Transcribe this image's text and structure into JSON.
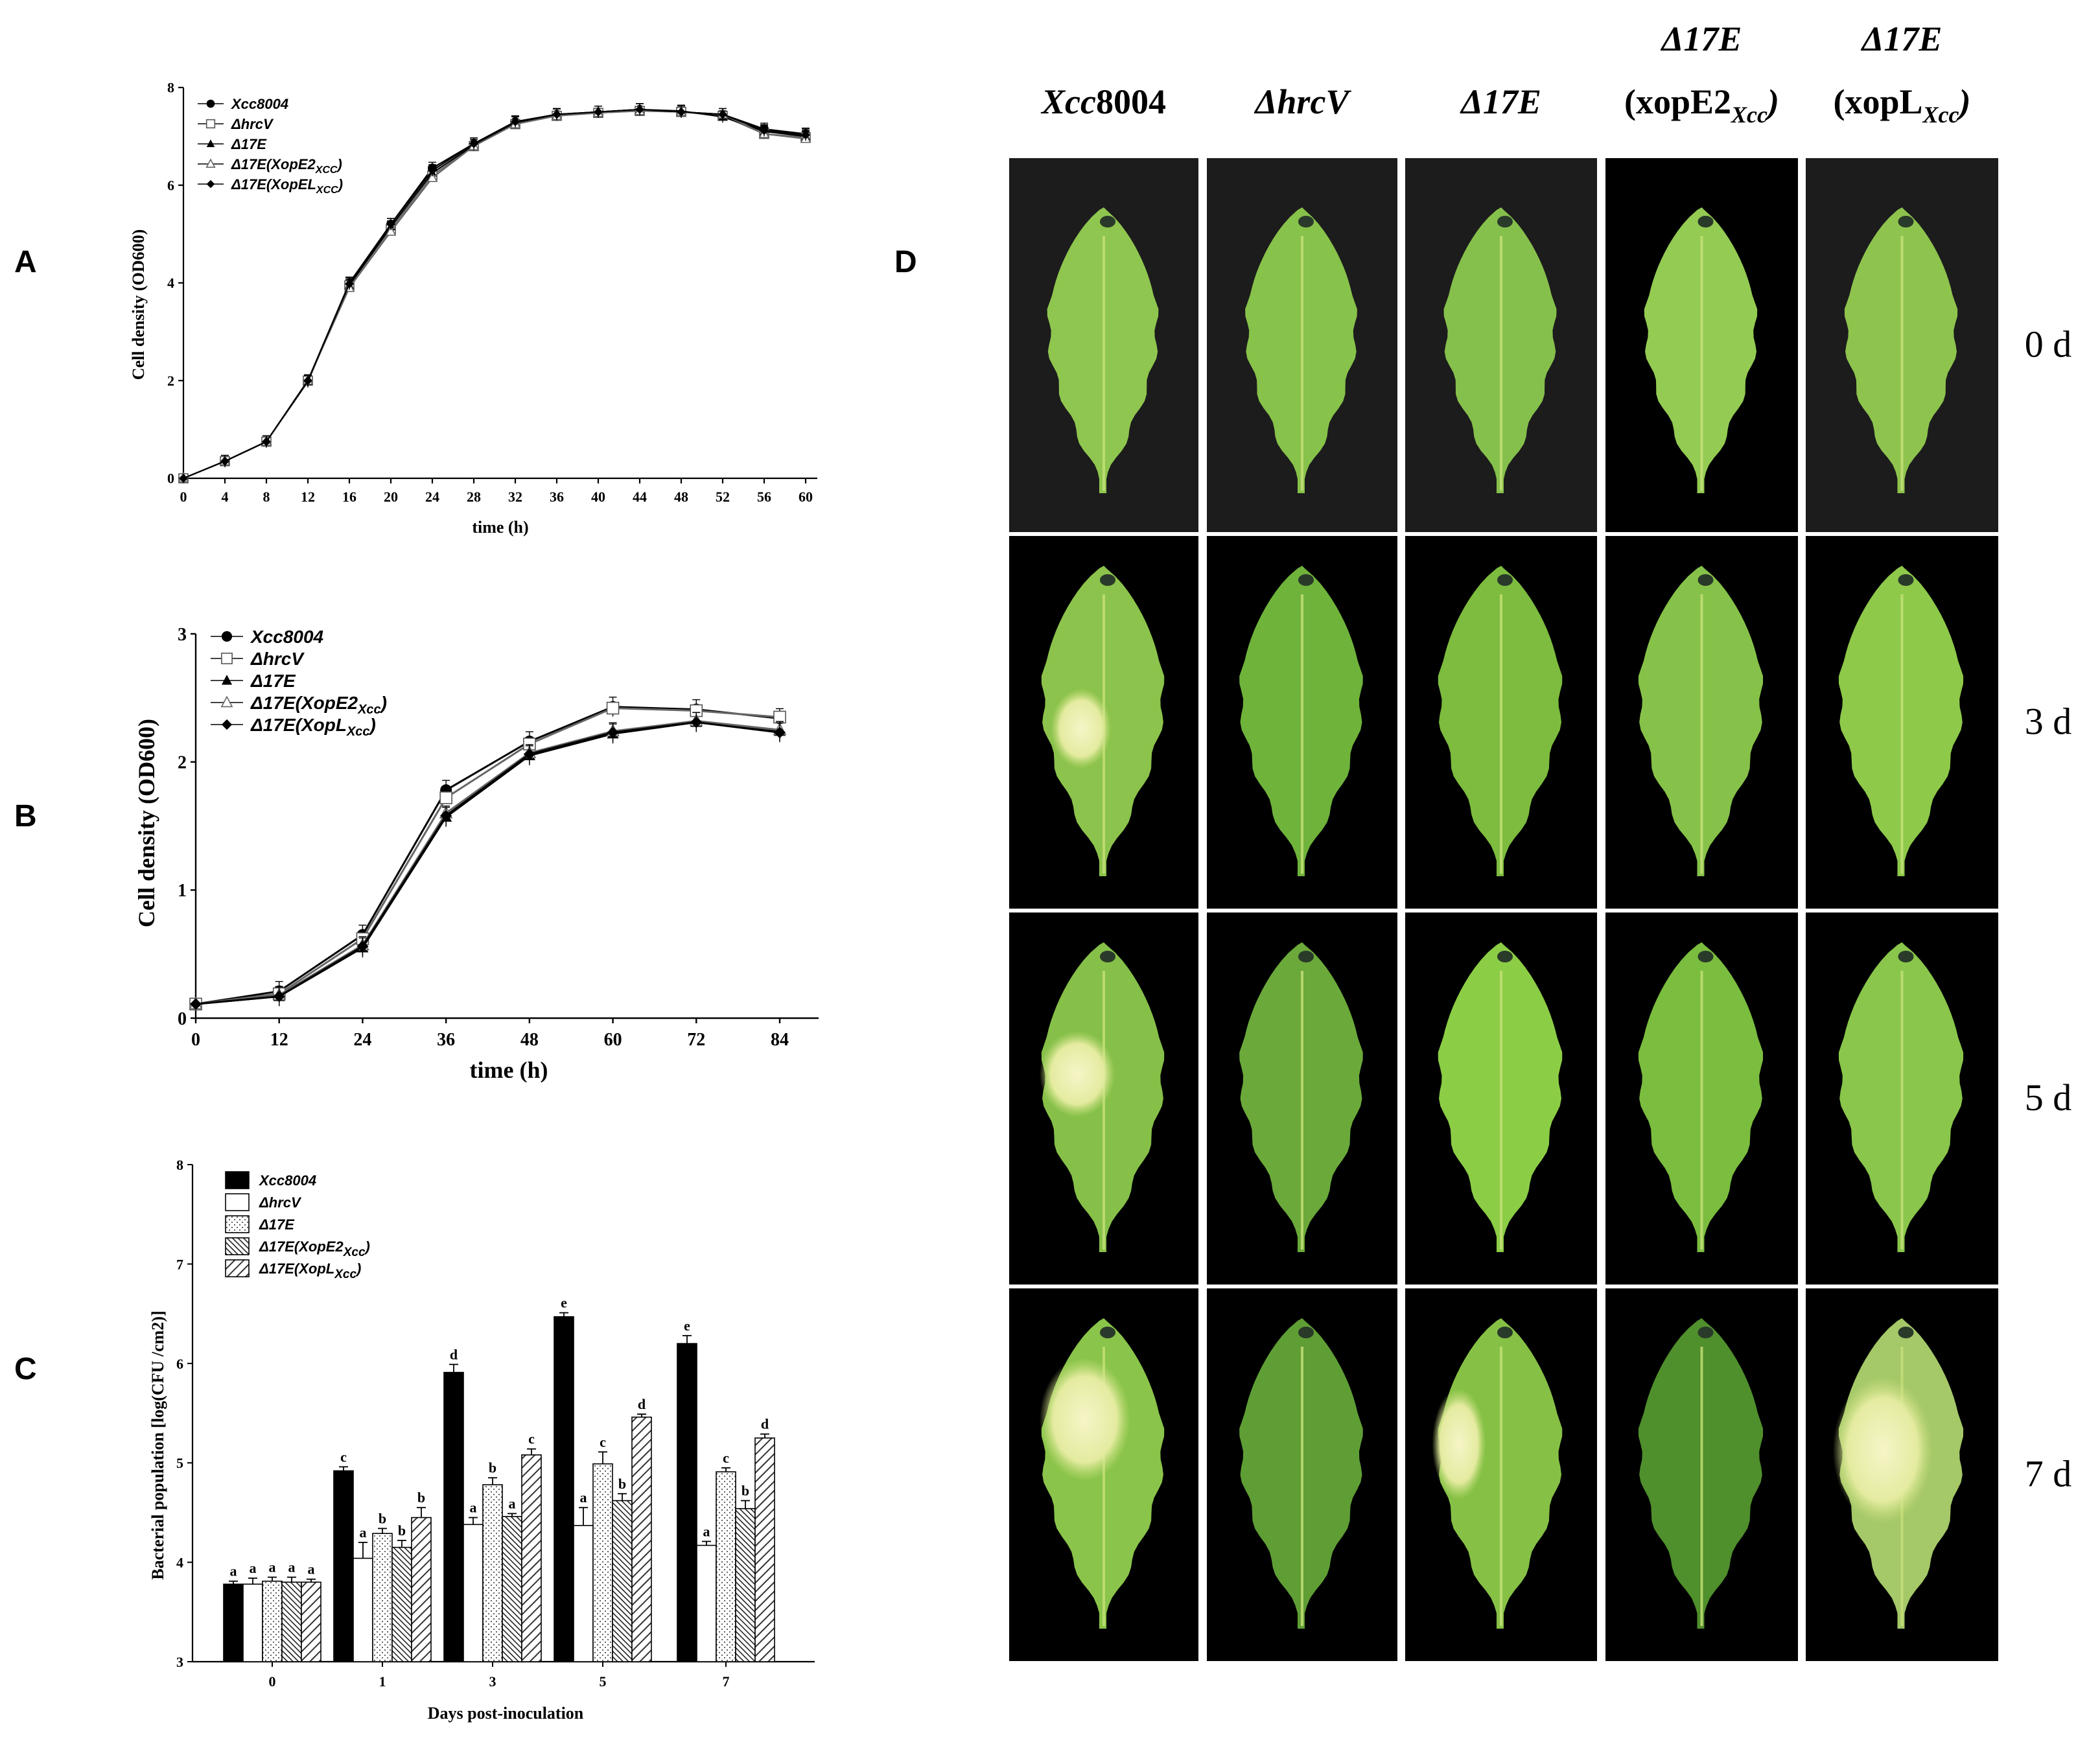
{
  "panels": {
    "A": "A",
    "B": "B",
    "C": "C",
    "D": "D"
  },
  "panel_d": {
    "columns": [
      {
        "line1": "",
        "line2": "Xcc8004"
      },
      {
        "line1": "",
        "line2": "ΔhrcV"
      },
      {
        "line1": "",
        "line2": "Δ17E"
      },
      {
        "line1": "Δ17E",
        "line2": "(xopE2Xcc)"
      },
      {
        "line1": "Δ17E",
        "line2": "(xopLXcc)"
      }
    ],
    "rows": [
      "0 d",
      "3 d",
      "5 d",
      "7 d"
    ],
    "colors": {
      "background_light": "#1c1c1c",
      "background_dark": "#000000",
      "leaf_light": "#9fce5a",
      "leaf_mid": "#7fbb3f",
      "leaf_dark": "#4e8f27",
      "lesion": "#eef0b0"
    }
  },
  "chart_data": [
    {
      "panel": "A",
      "type": "line",
      "xlabel": "time (h)",
      "ylabel": "Cell density (OD600)",
      "ylim": [
        0,
        8
      ],
      "xlim": [
        0,
        60
      ],
      "x": [
        0,
        4,
        8,
        12,
        16,
        20,
        24,
        28,
        32,
        36,
        40,
        44,
        48,
        52,
        56,
        60
      ],
      "xticks": [
        "0",
        "4",
        "8",
        "12",
        "16",
        "20",
        "24",
        "28",
        "32",
        "36",
        "40",
        "44",
        "48",
        "52",
        "56",
        "60"
      ],
      "yticks": [
        "0",
        "2",
        "4",
        "6",
        "8"
      ],
      "legend_position": "top-left",
      "series": [
        {
          "name": "Xcc8004",
          "marker": "circle-filled",
          "values": [
            0,
            0.35,
            0.75,
            2.0,
            4.0,
            5.2,
            6.35,
            6.85,
            7.3,
            7.45,
            7.5,
            7.55,
            7.5,
            7.45,
            7.15,
            7.05
          ]
        },
        {
          "name": "ΔhrcV",
          "marker": "square-open",
          "values": [
            0,
            0.35,
            0.75,
            2.0,
            3.95,
            5.1,
            6.2,
            6.8,
            7.25,
            7.42,
            7.48,
            7.52,
            7.5,
            7.42,
            7.05,
            6.98
          ]
        },
        {
          "name": "Δ17E",
          "marker": "triangle-filled",
          "values": [
            0,
            0.35,
            0.75,
            1.98,
            3.95,
            5.15,
            6.25,
            6.82,
            7.28,
            7.44,
            7.5,
            7.55,
            7.52,
            7.4,
            7.1,
            7.0
          ]
        },
        {
          "name": "Δ17E(XopE2XCC)",
          "marker": "triangle-open",
          "values": [
            0,
            0.35,
            0.75,
            2.0,
            3.9,
            5.05,
            6.15,
            6.8,
            7.25,
            7.42,
            7.48,
            7.52,
            7.5,
            7.45,
            7.05,
            6.95
          ]
        },
        {
          "name": "Δ17E(XopELXCC)",
          "marker": "diamond-filled",
          "values": [
            0,
            0.35,
            0.75,
            2.0,
            3.98,
            5.2,
            6.3,
            6.85,
            7.3,
            7.45,
            7.5,
            7.55,
            7.5,
            7.45,
            7.12,
            7.03
          ]
        }
      ]
    },
    {
      "panel": "B",
      "type": "line",
      "xlabel": "time (h)",
      "ylabel": "Cell density (OD600)",
      "ylim": [
        0,
        3
      ],
      "xlim": [
        0,
        84
      ],
      "x": [
        0,
        12,
        24,
        36,
        48,
        60,
        72,
        84
      ],
      "xticks": [
        "0",
        "12",
        "24",
        "36",
        "48",
        "60",
        "72",
        "84"
      ],
      "yticks": [
        "0",
        "1",
        "2",
        "3"
      ],
      "legend_position": "top-left",
      "series": [
        {
          "name": "Xcc8004",
          "marker": "circle-filled",
          "values": [
            0.11,
            0.21,
            0.65,
            1.78,
            2.16,
            2.43,
            2.41,
            2.34
          ]
        },
        {
          "name": "ΔhrcV",
          "marker": "square-open",
          "values": [
            0.11,
            0.19,
            0.62,
            1.72,
            2.14,
            2.42,
            2.4,
            2.35
          ]
        },
        {
          "name": "Δ17E",
          "marker": "triangle-filled",
          "values": [
            0.11,
            0.17,
            0.55,
            1.57,
            2.05,
            2.22,
            2.31,
            2.24
          ]
        },
        {
          "name": "Δ17E(XopE2Xcc)",
          "marker": "triangle-open",
          "values": [
            0.11,
            0.18,
            0.57,
            1.6,
            2.07,
            2.24,
            2.32,
            2.25
          ]
        },
        {
          "name": "Δ17E(XopLXcc)",
          "marker": "diamond-filled",
          "values": [
            0.11,
            0.17,
            0.56,
            1.58,
            2.06,
            2.23,
            2.31,
            2.23
          ]
        }
      ]
    },
    {
      "panel": "C",
      "type": "bar",
      "xlabel": "Days post-inoculation",
      "ylabel": "Bacterial population [log(CFU /cm2)]",
      "ylim": [
        3,
        8
      ],
      "categories": [
        "0",
        "1",
        "3",
        "5",
        "7"
      ],
      "yticks": [
        "3",
        "4",
        "5",
        "6",
        "7",
        "8"
      ],
      "legend_position": "top-left",
      "series": [
        {
          "name": "Xcc8004",
          "fill": "solid-black",
          "values": [
            3.78,
            4.92,
            5.91,
            6.47,
            6.2
          ],
          "errors": [
            0.03,
            0.04,
            0.08,
            0.04,
            0.08
          ],
          "letters": [
            "a",
            "c",
            "d",
            "e",
            "e"
          ]
        },
        {
          "name": "ΔhrcV",
          "fill": "white",
          "values": [
            3.78,
            4.04,
            4.38,
            4.37,
            4.17
          ],
          "errors": [
            0.06,
            0.16,
            0.07,
            0.18,
            0.04
          ],
          "letters": [
            "a",
            "a",
            "a",
            "a",
            "a"
          ]
        },
        {
          "name": "Δ17E",
          "fill": "dotted",
          "values": [
            3.81,
            4.29,
            4.78,
            4.99,
            4.91
          ],
          "errors": [
            0.04,
            0.05,
            0.07,
            0.12,
            0.04
          ],
          "letters": [
            "a",
            "b",
            "b",
            "c",
            "c"
          ]
        },
        {
          "name": "Δ17E(XopE2Xcc)",
          "fill": "dense-hatch",
          "values": [
            3.8,
            4.15,
            4.46,
            4.62,
            4.54
          ],
          "errors": [
            0.05,
            0.07,
            0.03,
            0.07,
            0.08
          ],
          "letters": [
            "a",
            "b",
            "a",
            "b",
            "b"
          ]
        },
        {
          "name": "Δ17E(XopLXcc)",
          "fill": "hatch",
          "values": [
            3.8,
            4.45,
            5.08,
            5.46,
            5.25
          ],
          "errors": [
            0.03,
            0.1,
            0.06,
            0.03,
            0.04
          ],
          "letters": [
            "a",
            "b",
            "c",
            "d",
            "d"
          ]
        }
      ]
    }
  ]
}
